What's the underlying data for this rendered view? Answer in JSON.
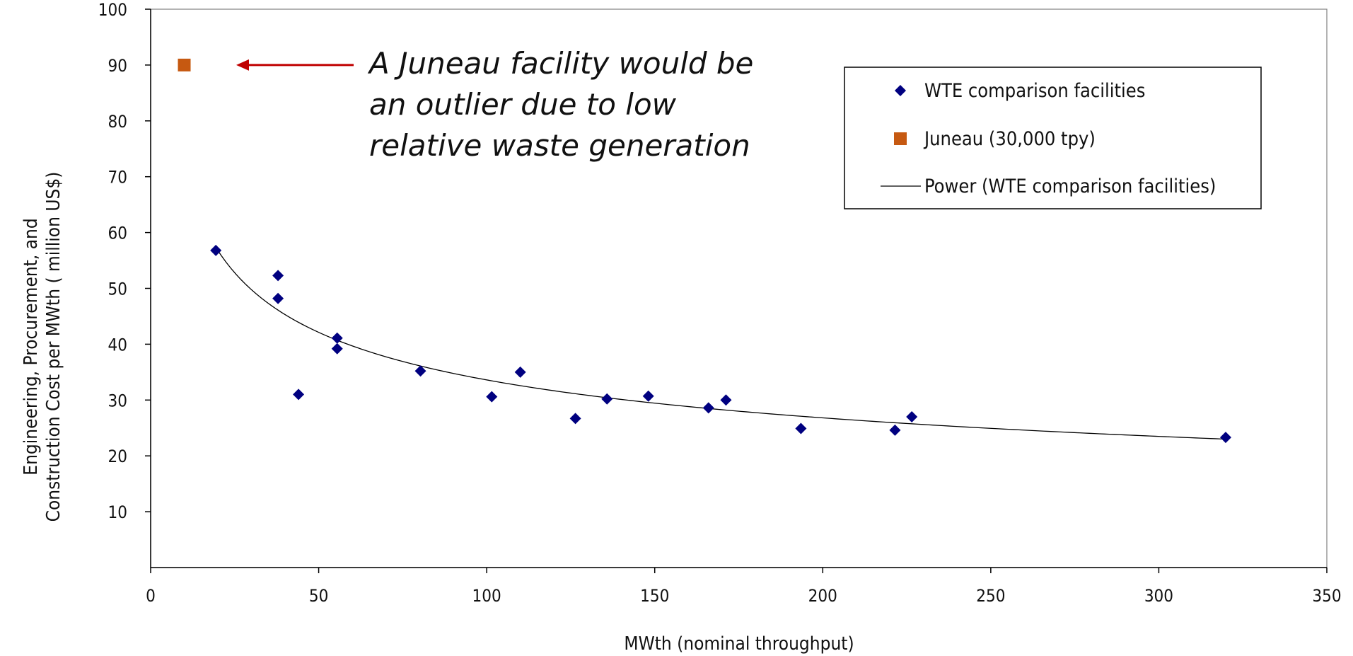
{
  "chart_data": {
    "type": "scatter",
    "xlabel": "MWth (nominal throughput)",
    "ylabel_lines": [
      "Engineering,  Procurement, and",
      "Construction Cost per MWth ( million US$)"
    ],
    "xlim": [
      0,
      350
    ],
    "ylim": [
      0,
      100
    ],
    "x_ticks": [
      "0",
      "50",
      "100",
      "150",
      "200",
      "250",
      "300",
      "350"
    ],
    "y_ticks": [
      "10",
      "20",
      "30",
      "40",
      "50",
      "60",
      "70",
      "80",
      "90",
      "100"
    ],
    "grid": false,
    "legend_position": "top-right",
    "series": [
      {
        "name": "WTE comparison facilities",
        "marker": "diamond",
        "color": "#000080",
        "points": [
          {
            "x": 19.4,
            "y": 56.8
          },
          {
            "x": 37.9,
            "y": 52.3
          },
          {
            "x": 37.9,
            "y": 48.2
          },
          {
            "x": 44.0,
            "y": 31.0
          },
          {
            "x": 55.5,
            "y": 41.1
          },
          {
            "x": 55.5,
            "y": 39.2
          },
          {
            "x": 80.3,
            "y": 35.2
          },
          {
            "x": 101.5,
            "y": 30.6
          },
          {
            "x": 110.0,
            "y": 35.0
          },
          {
            "x": 126.4,
            "y": 26.7
          },
          {
            "x": 135.8,
            "y": 30.2
          },
          {
            "x": 148.1,
            "y": 30.7
          },
          {
            "x": 166.0,
            "y": 28.6
          },
          {
            "x": 171.2,
            "y": 30.0
          },
          {
            "x": 193.5,
            "y": 24.9
          },
          {
            "x": 221.5,
            "y": 24.6
          },
          {
            "x": 226.5,
            "y": 27.0
          },
          {
            "x": 319.9,
            "y": 23.3
          }
        ]
      },
      {
        "name": "Juneau (30,000 tpy)",
        "marker": "square",
        "color": "#C65911",
        "points": [
          {
            "x": 10.0,
            "y": 90.0
          }
        ]
      },
      {
        "name": "Power (WTE comparison facilities)",
        "type": "trendline",
        "color": "#000000",
        "x_range": [
          19.4,
          319.9
        ],
        "coef": 150.8,
        "exponent": -0.326
      }
    ],
    "annotation": {
      "lines": [
        "A Juneau facility would be",
        "an outlier due to low",
        "relative waste generation"
      ],
      "arrow_color": "#C00000"
    }
  }
}
